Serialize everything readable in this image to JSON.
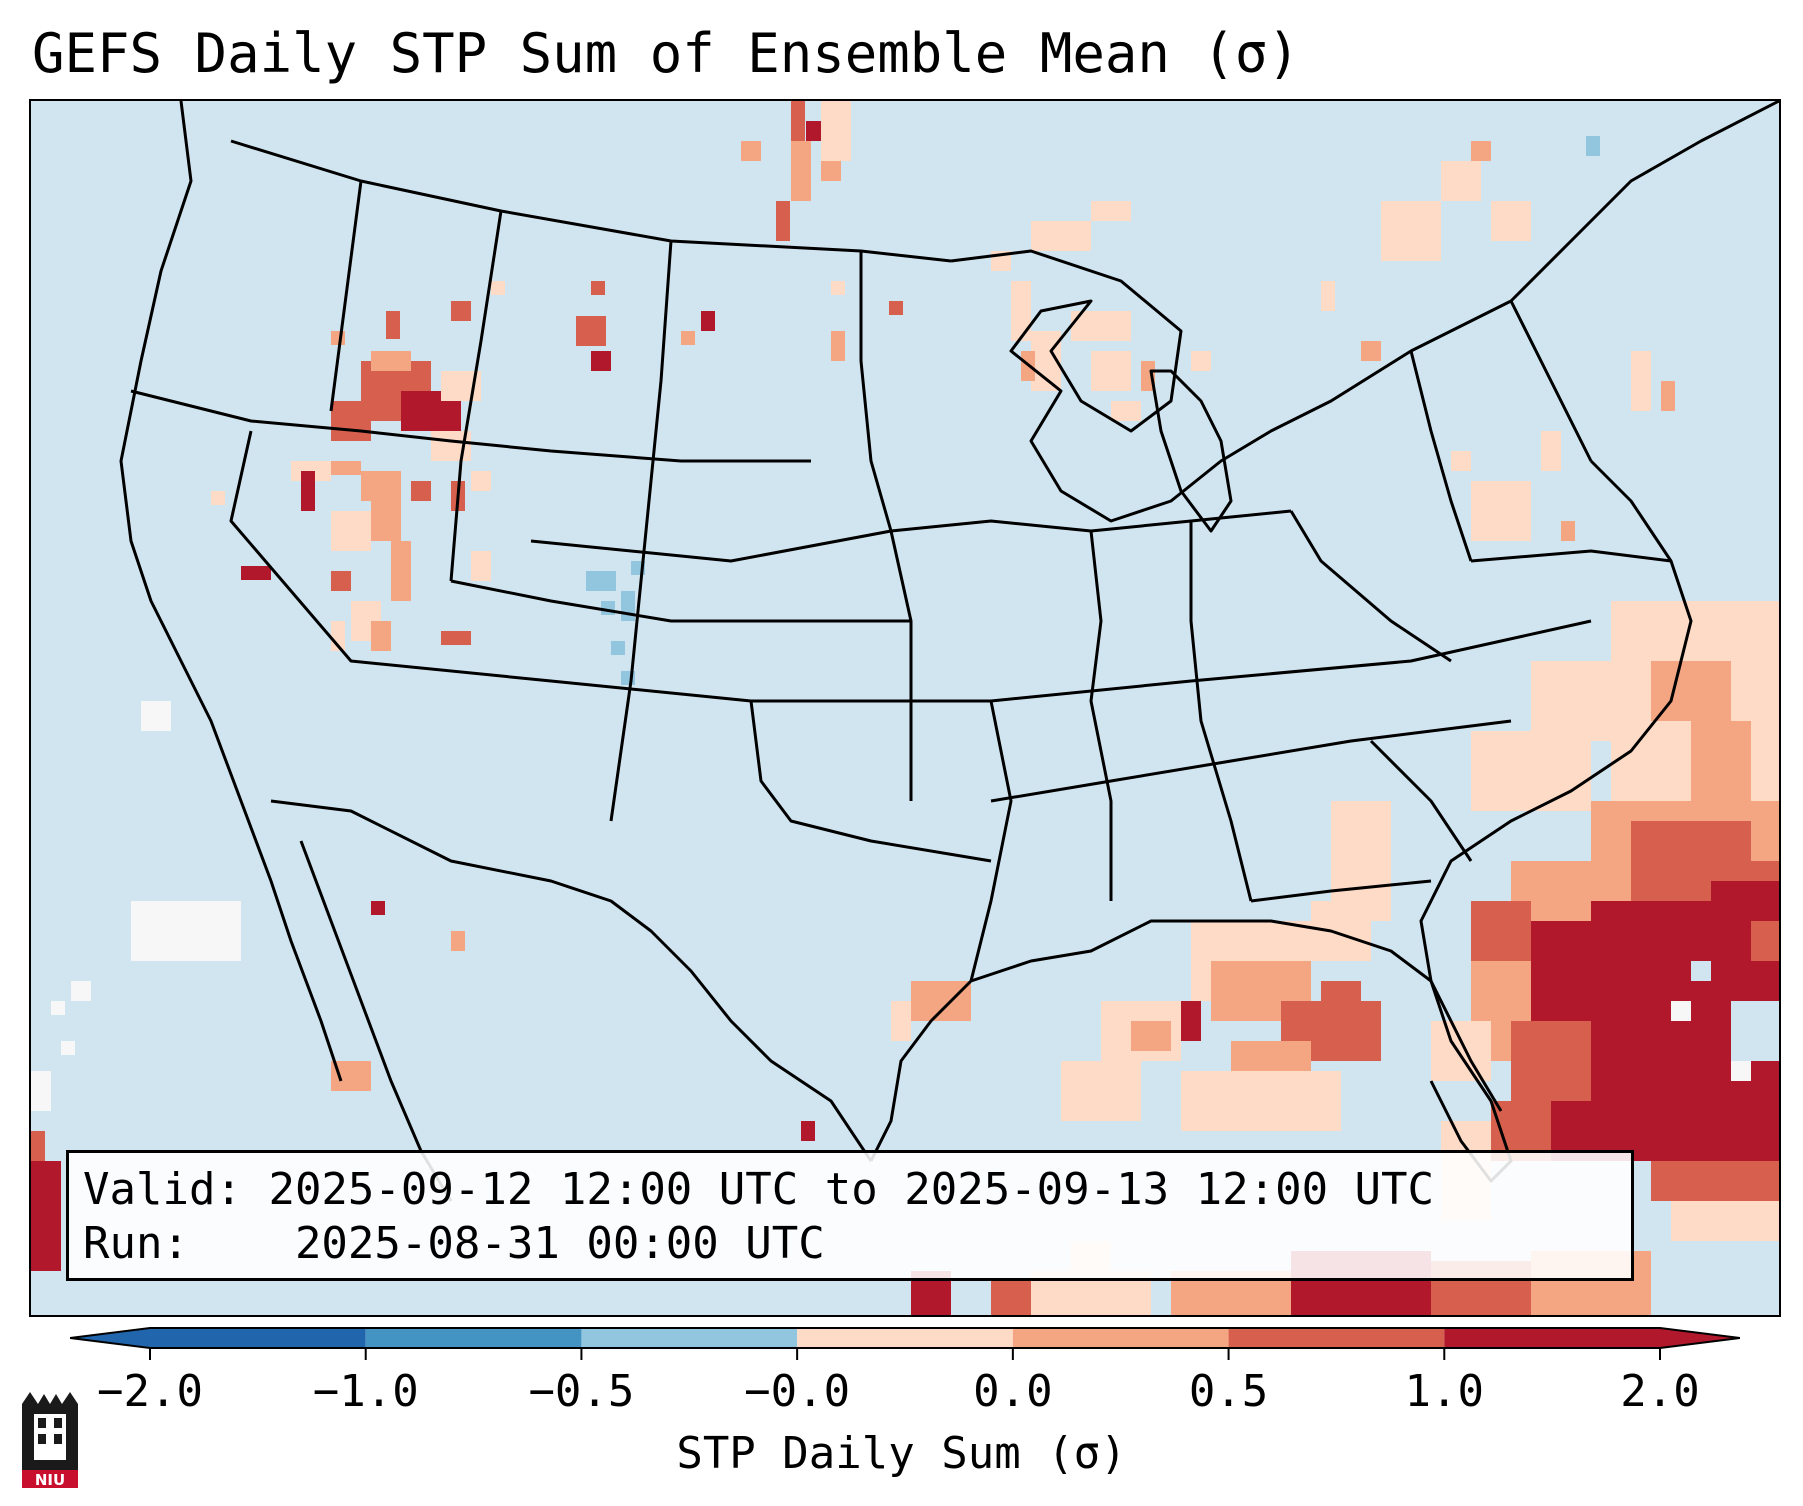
{
  "title": "GEFS Daily STP Sum of Ensemble Mean (σ)",
  "info": {
    "valid_label": "Valid:",
    "valid_value": "2025-09-12 12:00 UTC to 2025-09-13 12:00 UTC",
    "run_label": "Run:",
    "run_value": "2025-08-31 00:00 UTC"
  },
  "colorbar": {
    "label": "STP Daily Sum (σ)",
    "ticks": [
      "−2.0",
      "−1.0",
      "−0.5",
      "−0.0",
      "0.0",
      "0.5",
      "1.0",
      "2.0"
    ],
    "colors": [
      "#2166ac",
      "#4393c3",
      "#92c5de",
      "#f7f7f7",
      "#fddbc7",
      "#f4a582",
      "#d6604d",
      "#b2182b"
    ]
  },
  "logo": {
    "text": "NIU"
  },
  "colors": {
    "ocean": "#d1e5f0",
    "light_red": "#fddbc7",
    "mid_red": "#f4a582",
    "red": "#d6604d",
    "dark_red": "#b2182b",
    "light_blue": "#92c5de",
    "white": "#f7f7f7"
  }
}
